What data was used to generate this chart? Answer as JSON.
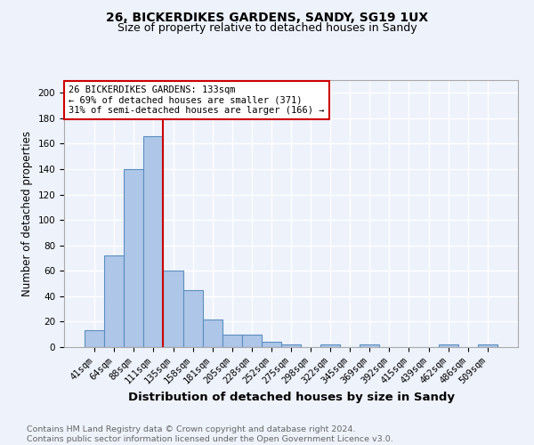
{
  "title1": "26, BICKERDIKES GARDENS, SANDY, SG19 1UX",
  "title2": "Size of property relative to detached houses in Sandy",
  "xlabel": "Distribution of detached houses by size in Sandy",
  "ylabel": "Number of detached properties",
  "footnote1": "Contains HM Land Registry data © Crown copyright and database right 2024.",
  "footnote2": "Contains public sector information licensed under the Open Government Licence v3.0.",
  "bar_labels": [
    "41sqm",
    "64sqm",
    "88sqm",
    "111sqm",
    "135sqm",
    "158sqm",
    "181sqm",
    "205sqm",
    "228sqm",
    "252sqm",
    "275sqm",
    "298sqm",
    "322sqm",
    "345sqm",
    "369sqm",
    "392sqm",
    "415sqm",
    "439sqm",
    "462sqm",
    "486sqm",
    "509sqm"
  ],
  "bar_values": [
    13,
    72,
    140,
    166,
    60,
    45,
    22,
    10,
    10,
    4,
    2,
    0,
    2,
    0,
    2,
    0,
    0,
    0,
    2,
    0,
    2
  ],
  "bar_color": "#aec6e8",
  "bar_edge_color": "#5a8fc0",
  "vline_color": "#cc0000",
  "annotation_text": "26 BICKERDIKES GARDENS: 133sqm\n← 69% of detached houses are smaller (371)\n31% of semi-detached houses are larger (166) →",
  "annotation_box_color": "#ffffff",
  "annotation_box_edge": "#cc0000",
  "ylim": [
    0,
    210
  ],
  "yticks": [
    0,
    20,
    40,
    60,
    80,
    100,
    120,
    140,
    160,
    180,
    200
  ],
  "background_color": "#eef2fb",
  "grid_color": "#ffffff",
  "title1_fontsize": 10,
  "title2_fontsize": 9,
  "xlabel_fontsize": 9.5,
  "ylabel_fontsize": 8.5,
  "tick_fontsize": 7.5,
  "annotation_fontsize": 7.5,
  "footnote_fontsize": 6.8
}
